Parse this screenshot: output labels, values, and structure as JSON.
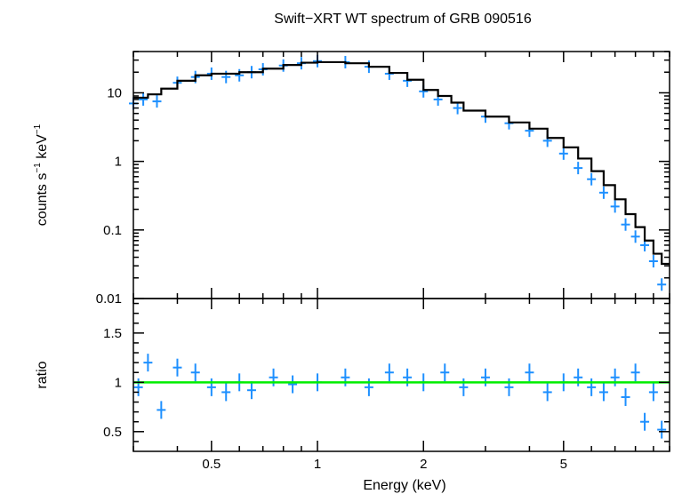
{
  "chart_data": [
    {
      "type": "scatter",
      "panel": "spectrum",
      "title": "Swift−XRT WT spectrum of GRB 090516",
      "xlabel": "",
      "ylabel_parts": [
        "counts s",
        "−1",
        " keV",
        "−1"
      ],
      "xscale": "log",
      "yscale": "log",
      "xlim": [
        0.3,
        10
      ],
      "ylim": [
        0.01,
        40
      ],
      "y_ticks": [
        {
          "value": 10,
          "label": "10"
        },
        {
          "value": 1,
          "label": "1"
        },
        {
          "value": 0.1,
          "label": "0.1"
        },
        {
          "value": 0.01,
          "label": "0.01"
        }
      ],
      "grid": false,
      "colors": {
        "data": "#1e90ff",
        "model": "#000000"
      },
      "series": [
        {
          "kind": "data",
          "x": [
            0.3,
            0.32,
            0.35,
            0.4,
            0.45,
            0.5,
            0.55,
            0.6,
            0.65,
            0.7,
            0.8,
            0.9,
            1.0,
            1.2,
            1.4,
            1.6,
            1.8,
            2.0,
            2.2,
            2.5,
            3.0,
            3.5,
            4.0,
            4.5,
            5.0,
            5.5,
            6.0,
            6.5,
            7.0,
            7.5,
            8.0,
            8.5,
            9.0,
            9.5
          ],
          "y": [
            7,
            8,
            7.5,
            14,
            17,
            19,
            17,
            18,
            20,
            22,
            25,
            27,
            29,
            28,
            24,
            19,
            15,
            10.5,
            8,
            6,
            4.5,
            3.6,
            2.8,
            2.0,
            1.3,
            0.8,
            0.55,
            0.35,
            0.22,
            0.12,
            0.08,
            0.06,
            0.035,
            0.016
          ]
        },
        {
          "kind": "model",
          "x": [
            0.3,
            0.33,
            0.36,
            0.4,
            0.45,
            0.5,
            0.6,
            0.7,
            0.8,
            0.9,
            1.0,
            1.2,
            1.4,
            1.6,
            1.8,
            2.0,
            2.2,
            2.4,
            2.6,
            3.0,
            3.5,
            4.0,
            4.5,
            5.0,
            5.5,
            6.0,
            6.5,
            7.0,
            7.5,
            8.0,
            8.5,
            9.0,
            9.5,
            10.0
          ],
          "y": [
            8.5,
            9.5,
            11.5,
            15,
            18,
            19,
            20,
            22.5,
            25.5,
            27.5,
            28,
            27,
            24,
            19.5,
            15.5,
            11,
            9,
            7.2,
            5.5,
            4.5,
            3.7,
            3.0,
            2.2,
            1.6,
            1.1,
            0.72,
            0.45,
            0.28,
            0.17,
            0.11,
            0.07,
            0.045,
            0.032,
            0.032
          ]
        }
      ]
    },
    {
      "type": "scatter",
      "panel": "ratio",
      "xlabel": "Energy (keV)",
      "ylabel": "ratio",
      "xscale": "log",
      "xlim": [
        0.3,
        10
      ],
      "ylim": [
        0.3,
        1.85
      ],
      "x_ticks": [
        {
          "value": 0.5,
          "label": "0.5"
        },
        {
          "value": 1,
          "label": "1"
        },
        {
          "value": 2,
          "label": "2"
        },
        {
          "value": 5,
          "label": "5"
        }
      ],
      "y_ticks": [
        {
          "value": 1.5,
          "label": "1.5"
        },
        {
          "value": 1,
          "label": "1"
        },
        {
          "value": 0.5,
          "label": "0.5"
        }
      ],
      "reference_line": 1,
      "grid": false,
      "colors": {
        "data": "#1e90ff",
        "reference": "#00ee00"
      },
      "series": [
        {
          "kind": "data",
          "x": [
            0.31,
            0.33,
            0.36,
            0.4,
            0.45,
            0.5,
            0.55,
            0.6,
            0.65,
            0.75,
            0.85,
            1.0,
            1.2,
            1.4,
            1.6,
            1.8,
            2.0,
            2.3,
            2.6,
            3.0,
            3.5,
            4.0,
            4.5,
            5.0,
            5.5,
            6.0,
            6.5,
            7.0,
            7.5,
            8.0,
            8.5,
            9.0,
            9.5
          ],
          "y": [
            0.95,
            1.2,
            0.72,
            1.15,
            1.1,
            0.95,
            0.9,
            1.0,
            0.92,
            1.05,
            0.98,
            1.0,
            1.05,
            0.95,
            1.1,
            1.05,
            1.0,
            1.1,
            0.95,
            1.05,
            0.95,
            1.1,
            0.9,
            1.0,
            1.05,
            0.95,
            0.9,
            1.05,
            0.85,
            1.1,
            0.6,
            0.9,
            0.52
          ]
        }
      ]
    }
  ]
}
